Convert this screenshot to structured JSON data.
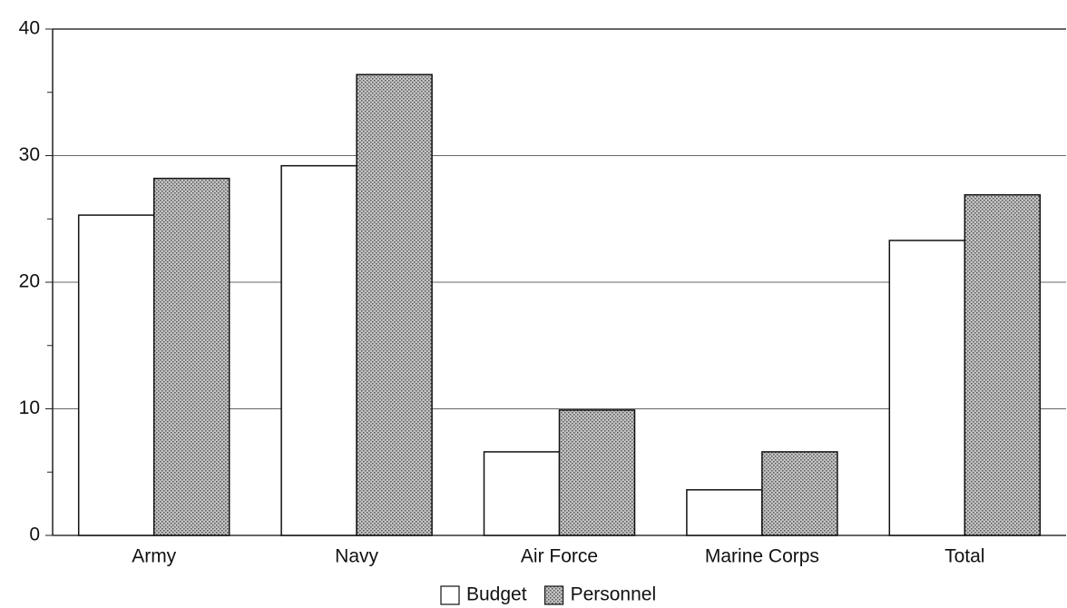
{
  "chart_data": {
    "type": "bar",
    "categories": [
      "Army",
      "Navy",
      "Air Force",
      "Marine Corps",
      "Total"
    ],
    "series": [
      {
        "name": "Budget",
        "color": "#ffffff",
        "values": [
          25.3,
          29.2,
          6.6,
          3.6,
          23.3
        ]
      },
      {
        "name": "Personnel",
        "color": "#c4c4c4",
        "values": [
          28.2,
          36.4,
          9.9,
          6.6,
          26.9
        ]
      }
    ],
    "ylim": [
      0,
      40
    ],
    "yticks": [
      0,
      10,
      20,
      30,
      40
    ],
    "minor_yticks": [
      5,
      15,
      25,
      35
    ],
    "grid": true,
    "legend": "bottom"
  }
}
